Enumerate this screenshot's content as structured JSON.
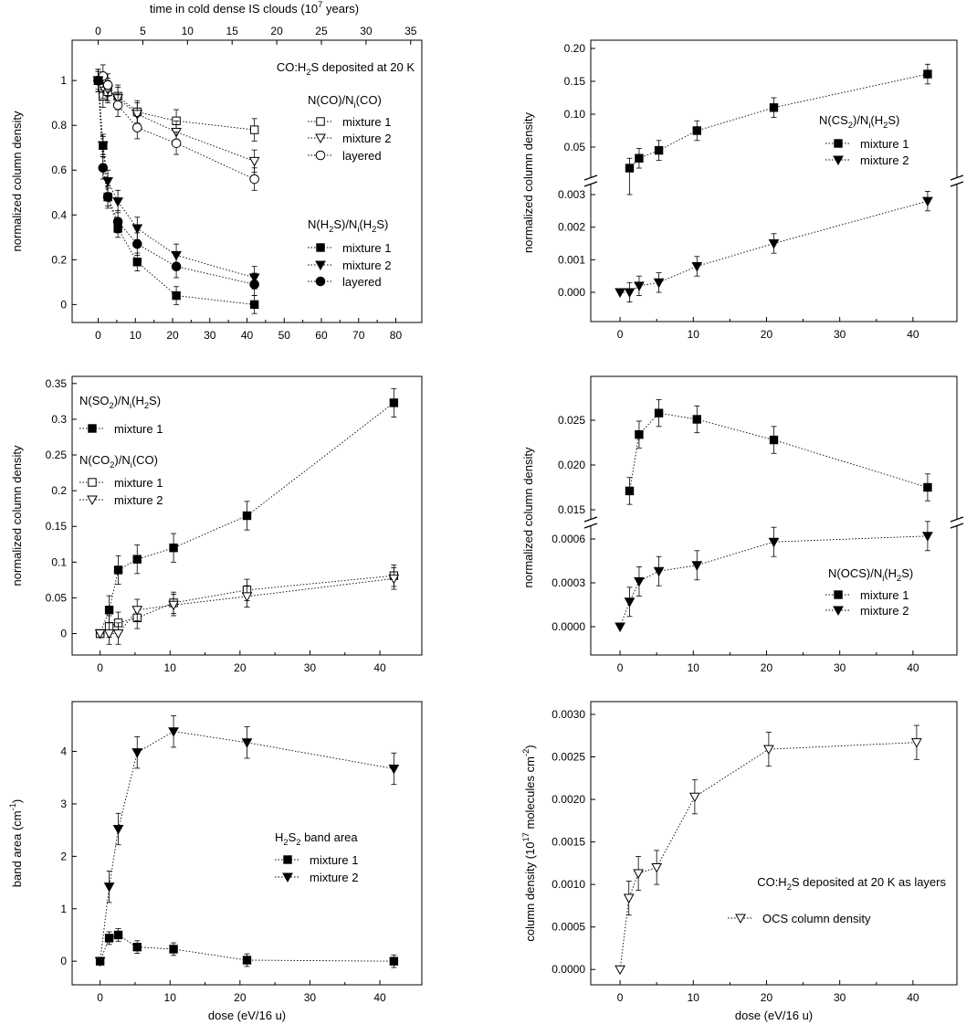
{
  "figure": {
    "top_axis_label": "time in cold dense IS clouds (10^7 years)",
    "top_axis_ticks": [
      "0",
      "5",
      "10",
      "15",
      "20",
      "25",
      "30",
      "35"
    ],
    "bottom_axis_label": "dose (eV/16 u)"
  },
  "chart_data": [
    {
      "id": "panel-a",
      "type": "scatter",
      "ylabel": "normalized column density",
      "xlim": [
        -7,
        87
      ],
      "ylim": [
        -0.08,
        1.18
      ],
      "x_ticks": [
        0,
        10,
        20,
        30,
        40,
        50,
        60,
        70,
        80
      ],
      "y_ticks": [
        0.0,
        0.2,
        0.4,
        0.6,
        0.8,
        1.0
      ],
      "annotation": "CO:H2S deposited at 20 K",
      "series": [
        {
          "name": "mixture 1",
          "group": "N(CO)/Ni(CO)",
          "marker": "square-open",
          "x": [
            0,
            1.3,
            2.6,
            5.3,
            10.5,
            21,
            42
          ],
          "y": [
            1.0,
            0.93,
            0.95,
            0.93,
            0.86,
            0.82,
            0.78
          ],
          "err": 0.05
        },
        {
          "name": "mixture 2",
          "group": "N(CO)/Ni(CO)",
          "marker": "triangle-open",
          "x": [
            0,
            1.3,
            2.6,
            5.3,
            10.5,
            21,
            42
          ],
          "y": [
            1.0,
            0.97,
            0.96,
            0.92,
            0.85,
            0.77,
            0.64
          ],
          "err": 0.05
        },
        {
          "name": "layered",
          "group": "N(CO)/Ni(CO)",
          "marker": "circle-open",
          "x": [
            0,
            1.3,
            2.6,
            5.3,
            10.5,
            21,
            42
          ],
          "y": [
            1.0,
            1.02,
            0.98,
            0.89,
            0.79,
            0.72,
            0.56
          ],
          "err": 0.05
        },
        {
          "name": "mixture 1",
          "group": "N(H2S)/Ni(H2S)",
          "marker": "square",
          "x": [
            0,
            1.3,
            2.6,
            5.3,
            10.5,
            21,
            42
          ],
          "y": [
            1.0,
            0.71,
            0.48,
            0.34,
            0.19,
            0.04,
            0.0
          ],
          "err": 0.04
        },
        {
          "name": "mixture 2",
          "group": "N(H2S)/Ni(H2S)",
          "marker": "triangle",
          "x": [
            0,
            1.3,
            2.6,
            5.3,
            10.5,
            21,
            42
          ],
          "y": [
            1.0,
            0.71,
            0.55,
            0.46,
            0.34,
            0.22,
            0.12
          ],
          "err": 0.05
        },
        {
          "name": "layered",
          "group": "N(H2S)/Ni(H2S)",
          "marker": "circle",
          "x": [
            0,
            1.3,
            2.6,
            5.3,
            10.5,
            21,
            42
          ],
          "y": [
            1.0,
            0.61,
            0.48,
            0.37,
            0.27,
            0.17,
            0.09
          ],
          "err": 0.05
        }
      ]
    },
    {
      "id": "panel-b",
      "type": "scatter",
      "broken_axis": true,
      "ylabel": "normalized column density",
      "xlim": [
        -4,
        46
      ],
      "x_ticks": [
        0,
        10,
        20,
        30,
        40
      ],
      "y_ticks_upper": [
        "0.05",
        "0.10",
        "0.15",
        "0.20"
      ],
      "y_ticks_lower": [
        "0.000",
        "0.001",
        "0.002",
        "0.003"
      ],
      "series": [
        {
          "name": "mixture 1",
          "group": "N(CS2)/Ni(H2S)",
          "marker": "square",
          "x": [
            1.3,
            2.6,
            5.3,
            10.5,
            21,
            42
          ],
          "y": [
            0.018,
            0.033,
            0.045,
            0.075,
            0.11,
            0.161
          ],
          "err": 0.015
        },
        {
          "name": "mixture 2",
          "group": "N(CS2)/Ni(H2S)",
          "marker": "triangle",
          "x": [
            0,
            1.3,
            2.6,
            5.3,
            10.5,
            21,
            42
          ],
          "y": [
            0.0,
            0.0,
            0.0002,
            0.0003,
            0.0008,
            0.0015,
            0.0028
          ],
          "err": 0.0003
        }
      ]
    },
    {
      "id": "panel-c",
      "type": "scatter",
      "ylabel": "normalized column density",
      "xlim": [
        -4,
        46
      ],
      "ylim": [
        -0.03,
        0.36
      ],
      "x_ticks": [
        0,
        10,
        20,
        30,
        40
      ],
      "y_ticks": [
        0.0,
        0.05,
        0.1,
        0.15,
        0.2,
        0.25,
        0.3,
        0.35
      ],
      "series": [
        {
          "name": "mixture 1",
          "group": "N(SO2)/Ni(H2S)",
          "marker": "square",
          "x": [
            0,
            1.3,
            2.6,
            5.3,
            10.5,
            21,
            42
          ],
          "y": [
            0.0,
            0.033,
            0.089,
            0.104,
            0.12,
            0.165,
            0.323
          ],
          "err": 0.02
        },
        {
          "name": "mixture 1",
          "group": "N(CO2)/Ni(CO)",
          "marker": "square-open",
          "x": [
            0,
            1.3,
            2.6,
            5.3,
            10.5,
            21,
            42
          ],
          "y": [
            0.0,
            0.01,
            0.015,
            0.022,
            0.043,
            0.061,
            0.081
          ],
          "err": 0.015
        },
        {
          "name": "mixture 2",
          "group": "N(CO2)/Ni(CO)",
          "marker": "triangle-open",
          "x": [
            0,
            1.3,
            2.6,
            5.3,
            10.5,
            21,
            42
          ],
          "y": [
            0.0,
            0.0,
            0.0,
            0.033,
            0.04,
            0.052,
            0.077
          ],
          "err": 0.015
        }
      ]
    },
    {
      "id": "panel-d",
      "type": "scatter",
      "broken_axis": true,
      "ylabel": "normalized column density",
      "xlim": [
        -4,
        46
      ],
      "x_ticks": [
        0,
        10,
        20,
        30,
        40
      ],
      "y_ticks_upper": [
        "0.015",
        "0.020",
        "0.025"
      ],
      "y_ticks_lower": [
        "0.0000",
        "0.0003",
        "0.0006"
      ],
      "series": [
        {
          "name": "mixture 1",
          "group": "N(OCS)/Ni(H2S)",
          "marker": "square",
          "x": [
            1.3,
            2.6,
            5.3,
            10.5,
            21,
            42
          ],
          "y": [
            0.0171,
            0.0234,
            0.0258,
            0.0251,
            0.0228,
            0.0175
          ],
          "err": 0.0015
        },
        {
          "name": "mixture 2",
          "group": "N(OCS)/Ni(H2S)",
          "marker": "triangle",
          "x": [
            0,
            1.3,
            2.6,
            5.3,
            10.5,
            21,
            42
          ],
          "y": [
            0.0,
            0.00017,
            0.00031,
            0.00038,
            0.00042,
            0.00058,
            0.00062
          ],
          "err": 0.0001
        }
      ]
    },
    {
      "id": "panel-e",
      "type": "scatter",
      "ylabel": "band area (cm^-1)",
      "xlabel": "dose (eV/16 u)",
      "xlim": [
        -4,
        46
      ],
      "ylim": [
        -0.45,
        4.95
      ],
      "x_ticks": [
        0,
        10,
        20,
        30,
        40
      ],
      "y_ticks": [
        0,
        1,
        2,
        3,
        4
      ],
      "series": [
        {
          "name": "mixture 1",
          "group": "H2S2 band area",
          "marker": "square",
          "x": [
            0,
            1.3,
            2.6,
            5.3,
            10.5,
            21,
            42
          ],
          "y": [
            0.0,
            0.44,
            0.5,
            0.27,
            0.23,
            0.02,
            0.0
          ],
          "err": 0.12
        },
        {
          "name": "mixture 2",
          "group": "H2S2 band area",
          "marker": "triangle",
          "x": [
            0,
            1.3,
            2.6,
            5.3,
            10.5,
            21,
            42
          ],
          "y": [
            0.0,
            1.42,
            2.52,
            3.98,
            4.38,
            4.17,
            3.67
          ],
          "err": 0.3
        }
      ]
    },
    {
      "id": "panel-f",
      "type": "scatter",
      "ylabel": "column density (10^17 molecules cm^-2)",
      "xlabel": "dose (eV/16 u)",
      "xlim": [
        -4,
        46
      ],
      "ylim": [
        -0.00018,
        0.00315
      ],
      "x_ticks": [
        0,
        10,
        20,
        30,
        40
      ],
      "y_ticks": [
        "0.0000",
        "0.0005",
        "0.0010",
        "0.0015",
        "0.0020",
        "0.0025",
        "0.0030"
      ],
      "annotation": "CO:H2S deposited at 20 K as layers",
      "series": [
        {
          "name": "OCS column density",
          "marker": "triangle-open",
          "x": [
            0,
            1.2,
            2.5,
            5.0,
            10.2,
            20.3,
            40.5
          ],
          "y": [
            0.0,
            0.00084,
            0.00113,
            0.0012,
            0.00203,
            0.00259,
            0.00267
          ],
          "err": 0.0002
        }
      ]
    }
  ]
}
